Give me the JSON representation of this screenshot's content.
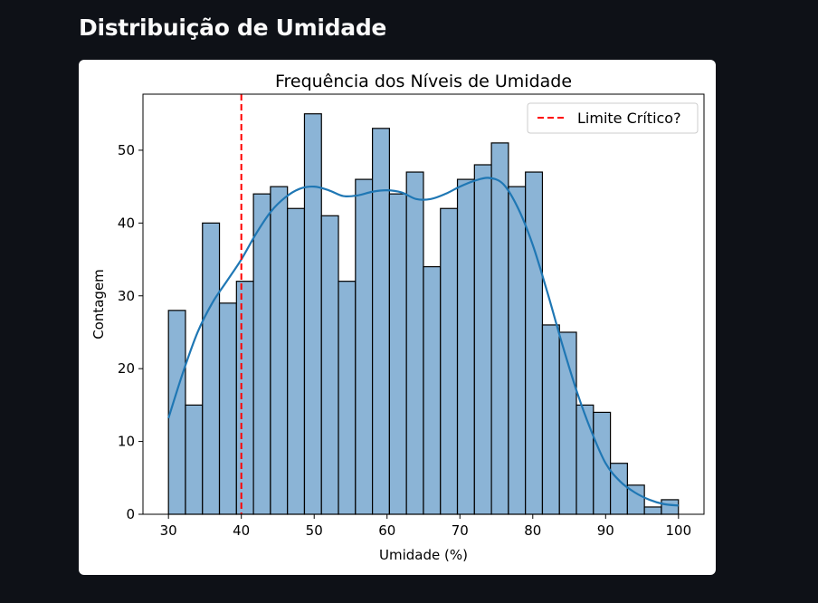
{
  "page": {
    "title": "Distribuição de Umidade"
  },
  "colors": {
    "background": "#0e1117",
    "card": "#ffffff",
    "bar_fill": "#8bb4d6",
    "bar_edge": "#000000",
    "kde_line": "#1f77b4",
    "critical_line": "#ff0000"
  },
  "chart_data": {
    "type": "bar",
    "title": "Frequência dos Níveis de Umidade",
    "xlabel": "Umidade (%)",
    "ylabel": "Contagem",
    "xlim": [
      26.5,
      103.5
    ],
    "ylim": [
      0,
      57.7
    ],
    "grid": false,
    "legend_position": "top-right",
    "xticks": [
      30,
      40,
      50,
      60,
      70,
      80,
      90,
      100
    ],
    "xtick_labels": [
      "30",
      "40",
      "50",
      "60",
      "70",
      "80",
      "90",
      "100"
    ],
    "yticks": [
      0,
      10,
      20,
      30,
      40,
      50
    ],
    "ytick_labels": [
      "0",
      "10",
      "20",
      "30",
      "40",
      "50"
    ],
    "bins": {
      "start": 30,
      "width": 2.333,
      "counts": [
        28,
        15,
        40,
        29,
        32,
        44,
        45,
        42,
        55,
        41,
        32,
        46,
        53,
        44,
        47,
        34,
        42,
        46,
        48,
        51,
        45,
        47,
        26,
        25,
        15,
        14,
        7,
        4,
        1,
        2
      ]
    },
    "kde": {
      "x": [
        30,
        32,
        34,
        36,
        38,
        40,
        42,
        44,
        46,
        48,
        50,
        52,
        54,
        56,
        58,
        60,
        62,
        64,
        66,
        68,
        70,
        72,
        74,
        76,
        78,
        80,
        82,
        84,
        86,
        88,
        90,
        92,
        94,
        96,
        98,
        100
      ],
      "y": [
        13.2,
        19.5,
        25,
        29,
        32,
        35,
        38.5,
        41.5,
        43.5,
        44.7,
        45,
        44.5,
        43.7,
        43.8,
        44.3,
        44.5,
        44.2,
        43.3,
        43.3,
        44,
        45,
        45.8,
        46.2,
        45.3,
        42,
        37,
        30.5,
        23.5,
        17,
        11.5,
        7,
        4.5,
        3,
        2,
        1.4,
        1.2
      ]
    },
    "reference_line": {
      "x": 40,
      "label": "Limite Crítico?",
      "style": "dashed"
    }
  }
}
